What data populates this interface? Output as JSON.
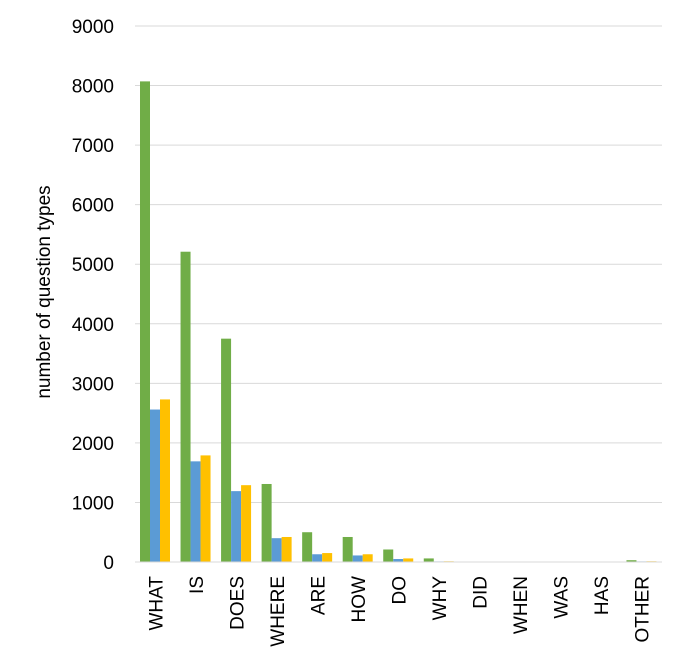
{
  "chart_data": {
    "type": "bar",
    "title": "",
    "xlabel": "",
    "ylabel": "number of question types",
    "ylim": [
      0,
      9000
    ],
    "yticks": [
      "0",
      "1000",
      "2000",
      "3000",
      "4000",
      "5000",
      "6000",
      "7000",
      "8000",
      "9000"
    ],
    "grid": true,
    "categories": [
      "WHAT",
      "IS",
      "DOES",
      "WHERE",
      "ARE",
      "HOW",
      "DO",
      "WHY",
      "DID",
      "WHEN",
      "WAS",
      "HAS",
      "OTHER"
    ],
    "series": [
      {
        "color": "#70ad47",
        "values": [
          8070,
          5210,
          3750,
          1310,
          500,
          420,
          210,
          60,
          8,
          6,
          5,
          4,
          30
        ]
      },
      {
        "color": "#5b9bd5",
        "values": [
          2560,
          1690,
          1190,
          400,
          130,
          110,
          50,
          10,
          3,
          3,
          2,
          2,
          10
        ]
      },
      {
        "color": "#ffc000",
        "values": [
          2730,
          1790,
          1290,
          420,
          150,
          130,
          60,
          12,
          3,
          3,
          2,
          2,
          12
        ]
      }
    ]
  }
}
